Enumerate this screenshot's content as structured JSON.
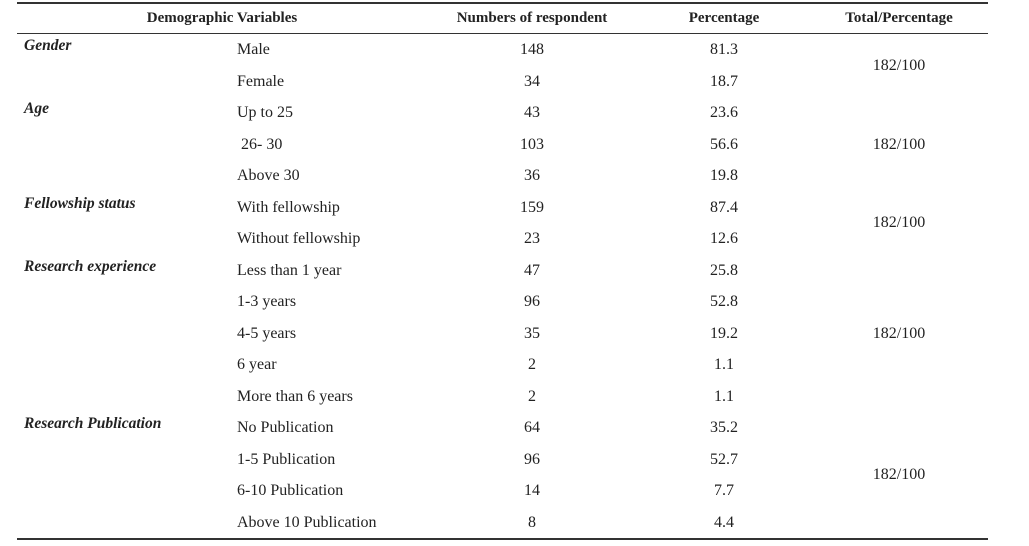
{
  "headers": {
    "variables": "Demographic Variables",
    "respondents": "Numbers of respondent",
    "percentage": "Percentage",
    "total": "Total/Percentage"
  },
  "groups": [
    {
      "name": "Gender",
      "total": "182/100",
      "rows": [
        {
          "label": "Male",
          "n": "148",
          "pct": "81.3"
        },
        {
          "label": "Female",
          "n": "34",
          "pct": "18.7"
        }
      ]
    },
    {
      "name": "Age",
      "total": "182/100",
      "rows": [
        {
          "label": "Up to 25",
          "n": "43",
          "pct": "23.6"
        },
        {
          "label": " 26- 30",
          "n": "103",
          "pct": "56.6"
        },
        {
          "label": "Above 30",
          "n": "36",
          "pct": "19.8"
        }
      ]
    },
    {
      "name": "Fellowship status",
      "total": "182/100",
      "rows": [
        {
          "label": "With fellowship",
          "n": "159",
          "pct": "87.4"
        },
        {
          "label": "Without fellowship",
          "n": "23",
          "pct": "12.6"
        }
      ]
    },
    {
      "name": "Research experience",
      "total": "182/100",
      "rows": [
        {
          "label": "Less than 1 year",
          "n": "47",
          "pct": "25.8"
        },
        {
          "label": "1-3 years",
          "n": "96",
          "pct": "52.8"
        },
        {
          "label": "4-5 years",
          "n": "35",
          "pct": "19.2"
        },
        {
          "label": "6 year",
          "n": "2",
          "pct": "1.1"
        },
        {
          "label": "More than 6 years",
          "n": "2",
          "pct": "1.1"
        }
      ]
    },
    {
      "name": "Research Publication",
      "total": "182/100",
      "rows": [
        {
          "label": "No Publication",
          "n": "64",
          "pct": "35.2"
        },
        {
          "label": "1-5 Publication",
          "n": "96",
          "pct": "52.7"
        },
        {
          "label": "6-10 Publication",
          "n": "14",
          "pct": "7.7"
        },
        {
          "label": "Above 10 Publication",
          "n": "8",
          "pct": "4.4"
        }
      ]
    }
  ]
}
